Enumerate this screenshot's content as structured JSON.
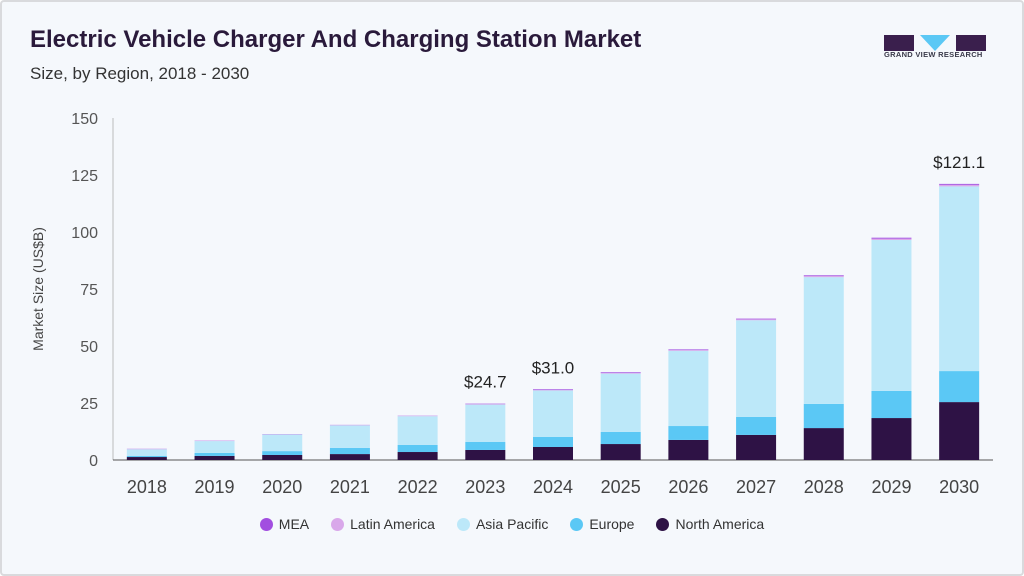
{
  "header": {
    "title": "Electric Vehicle Charger And Charging Station Market",
    "subtitle": "Size, by Region, 2018 - 2030",
    "logo_text": "GRAND VIEW RESEARCH"
  },
  "chart_data": {
    "type": "bar",
    "stacked": true,
    "title": "Electric Vehicle Charger And Charging Station Market",
    "subtitle": "Size, by Region, 2018 - 2030",
    "xlabel": "",
    "ylabel": "Market Size (US$B)",
    "ylim": [
      0,
      150
    ],
    "yticks": [
      0,
      25,
      50,
      75,
      100,
      125,
      150
    ],
    "grid": false,
    "legend_placement": "bottom",
    "categories": [
      "2018",
      "2019",
      "2020",
      "2021",
      "2022",
      "2023",
      "2024",
      "2025",
      "2026",
      "2027",
      "2028",
      "2029",
      "2030"
    ],
    "series": [
      {
        "name": "North America",
        "color": "#2e1245",
        "values": [
          1.3,
          1.8,
          2.2,
          2.6,
          3.5,
          4.4,
          5.7,
          7.0,
          8.8,
          11.0,
          14.0,
          18.4,
          25.4
        ]
      },
      {
        "name": "Europe",
        "color": "#5bc8f5",
        "values": [
          0.5,
          1.3,
          1.7,
          2.7,
          3.1,
          3.5,
          4.4,
          5.3,
          6.1,
          7.9,
          10.6,
          11.9,
          13.6
        ]
      },
      {
        "name": "Asia Pacific",
        "color": "#bce8f9",
        "values": [
          2.9,
          5.2,
          7.3,
          9.9,
          12.6,
          16.4,
          20.4,
          25.6,
          33.0,
          42.4,
          55.6,
          66.2,
          81.0
        ]
      },
      {
        "name": "Latin America",
        "color": "#d9a8ea",
        "values": [
          0.1,
          0.1,
          0.1,
          0.1,
          0.1,
          0.2,
          0.2,
          0.3,
          0.3,
          0.4,
          0.5,
          0.6,
          0.7
        ]
      },
      {
        "name": "MEA",
        "color": "#a24ee0",
        "values": [
          0.1,
          0.1,
          0.1,
          0.1,
          0.1,
          0.2,
          0.3,
          0.3,
          0.3,
          0.3,
          0.3,
          0.4,
          0.4
        ]
      }
    ],
    "data_labels": [
      {
        "category": "2023",
        "text": "$24.7"
      },
      {
        "category": "2024",
        "text": "$31.0"
      },
      {
        "category": "2030",
        "text": "$121.1"
      }
    ]
  },
  "legend": [
    {
      "name": "MEA",
      "color": "#a24ee0"
    },
    {
      "name": "Latin America",
      "color": "#d9a8ea"
    },
    {
      "name": "Asia Pacific",
      "color": "#bce8f9"
    },
    {
      "name": "Europe",
      "color": "#5bc8f5"
    },
    {
      "name": "North America",
      "color": "#2e1245"
    }
  ]
}
